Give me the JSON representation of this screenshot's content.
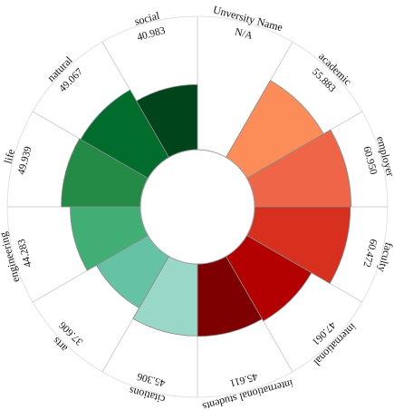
{
  "chart_data": {
    "type": "polar-bar",
    "rmax": 100,
    "segments": [
      {
        "name": "Unversity Name",
        "value": "N/A",
        "score": null,
        "color": "#ffffff"
      },
      {
        "name": "academic",
        "value": "55.883",
        "score": 55.883,
        "color": "#fc8d59"
      },
      {
        "name": "employer",
        "value": "60.950",
        "score": 60.95,
        "color": "#ef6548"
      },
      {
        "name": "faculty",
        "value": "60.472",
        "score": 60.472,
        "color": "#d7301f"
      },
      {
        "name": "international",
        "value": "47.061",
        "score": 47.061,
        "color": "#b30000"
      },
      {
        "name": "international students",
        "value": "45.611",
        "score": 45.611,
        "color": "#7f0000"
      },
      {
        "name": "citations",
        "value": "45.306",
        "score": 45.306,
        "color": "#99d8c9"
      },
      {
        "name": "arts",
        "value": "37.606",
        "score": 37.606,
        "color": "#66c2a4"
      },
      {
        "name": "engineering",
        "value": "44.283",
        "score": 44.283,
        "color": "#41ae76"
      },
      {
        "name": "life",
        "value": "49.939",
        "score": 49.939,
        "color": "#238b45"
      },
      {
        "name": "natural",
        "value": "49.067",
        "score": 49.067,
        "color": "#006d2c"
      },
      {
        "name": "social",
        "value": "40.983",
        "score": 40.983,
        "color": "#00441b"
      }
    ]
  }
}
